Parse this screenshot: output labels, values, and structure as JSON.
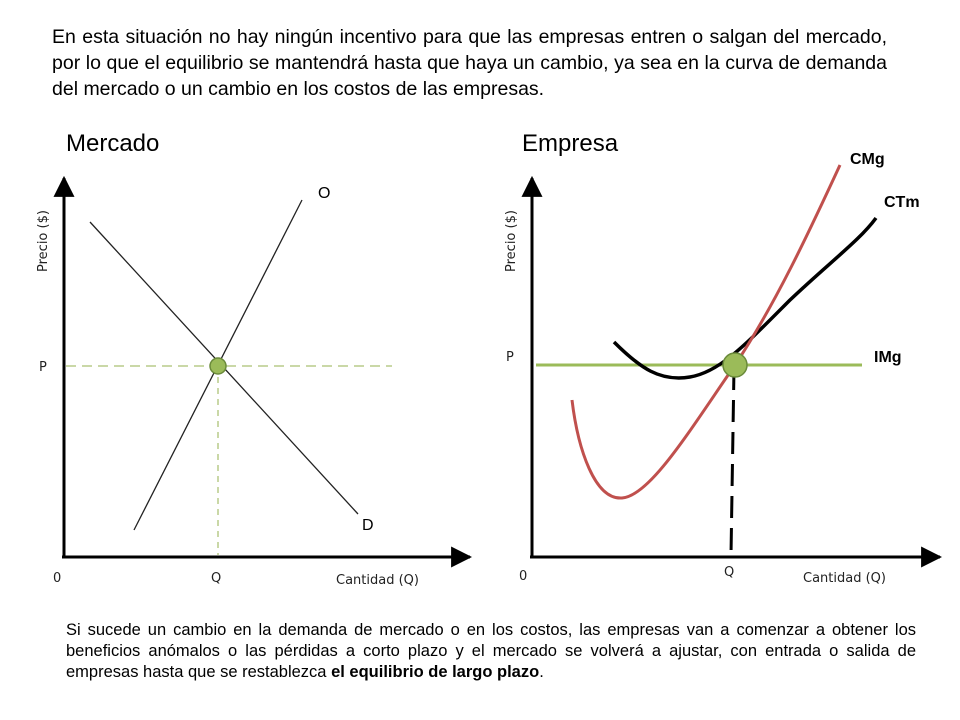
{
  "text": {
    "top": "En esta situación no hay ningún incentivo para que las empresas entren o salgan del mercado, por lo que el equilibrio se mantendrá hasta que haya un cambio, ya sea en la curva de demanda del mercado o un cambio en los costos de las empresas.",
    "bottom_prefix": "Si sucede un cambio en la demanda de mercado o en los costos, las empresas van a comenzar a obtener los beneficios anómalos o las pérdidas a corto plazo y el mercado se volverá a ajustar, con entrada o salida de empresas hasta que se restablezca ",
    "bottom_bold": "el equilibrio de largo plazo",
    "bottom_suffix": "."
  },
  "mercado": {
    "title": "Mercado",
    "y_axis_label": "Precio ($)",
    "x_axis_label": "Cantidad (Q)",
    "origin": "0",
    "price_label": "P",
    "quantity_label": "Q",
    "supply_label": "O",
    "demand_label": "D"
  },
  "empresa": {
    "title": "Empresa",
    "y_axis_label": "Precio ($)",
    "x_axis_label": "Cantidad (Q)",
    "origin": "0",
    "price_label": "P",
    "quantity_label": "Q",
    "cmg_label": "CMg",
    "ctm_label": "CTm",
    "img_label": "IMg"
  },
  "colors": {
    "axis": "#000000",
    "supply_demand": "#222222",
    "green_line": "#9bbb59",
    "dashed_guide": "#b9cc8a",
    "equilibrium_fill": "#9bbb59",
    "equilibrium_stroke": "#6a8a3a",
    "cmg_curve": "#c0504d",
    "ctm_curve": "#000000"
  }
}
